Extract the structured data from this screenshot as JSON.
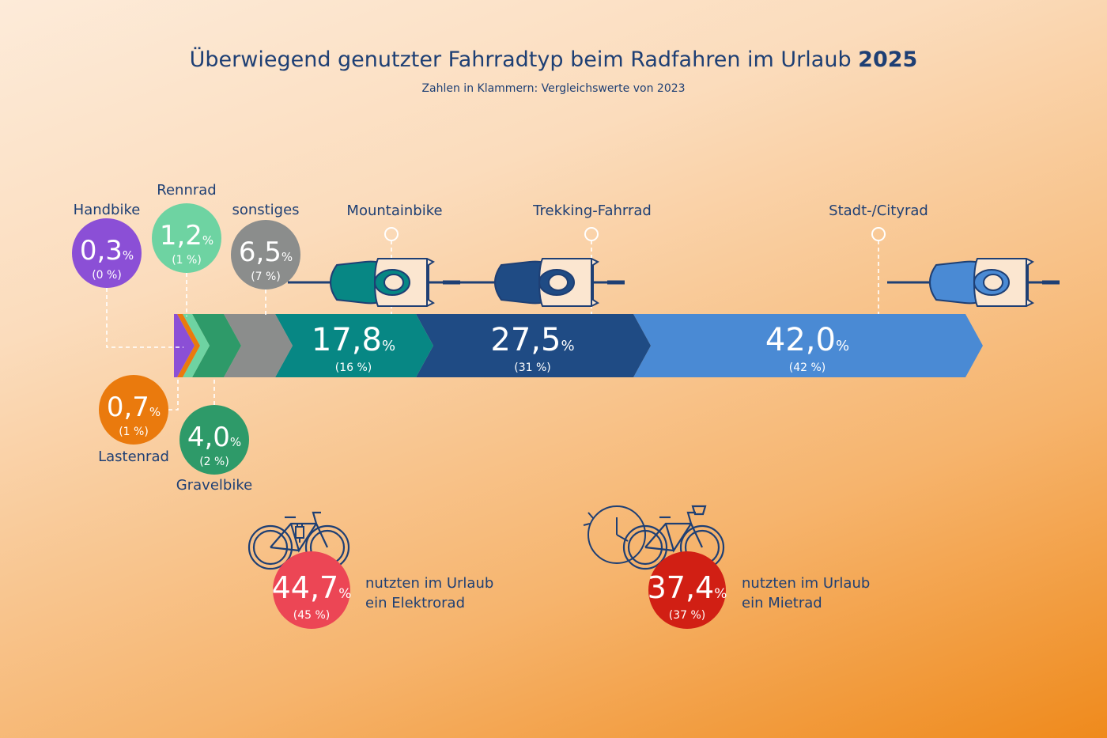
{
  "title": {
    "main": "Überwiegend genutzter Fahrradtyp beim Radfahren im Urlaub",
    "year": "2025"
  },
  "subtitle": "Zahlen in Klammern: Vergleichswerte von 2023",
  "chart_data": {
    "type": "bar",
    "orientation": "stacked-horizontal",
    "title": "Überwiegend genutzter Fahrradtyp beim Radfahren im Urlaub 2025",
    "unit": "%",
    "series": [
      {
        "name": "Handbike",
        "value": 0.3,
        "label": "0,3",
        "prev_label": "(0 %)",
        "color": "#8b4fd6"
      },
      {
        "name": "Lastenrad",
        "value": 0.7,
        "label": "0,7",
        "prev_label": "(1 %)",
        "color": "#ea7a0d"
      },
      {
        "name": "Rennrad",
        "value": 1.2,
        "label": "1,2",
        "prev_label": "(1 %)",
        "color": "#6ed3a2"
      },
      {
        "name": "Gravelbike",
        "value": 4.0,
        "label": "4,0",
        "prev_label": "(2 %)",
        "color": "#2e9a69"
      },
      {
        "name": "sonstiges",
        "value": 6.5,
        "label": "6,5",
        "prev_label": "(7 %)",
        "color": "#8b8d8c"
      },
      {
        "name": "Mountainbike",
        "value": 17.8,
        "label": "17,8",
        "prev_label": "(16 %)",
        "color": "#078784"
      },
      {
        "name": "Trekking-Fahrrad",
        "value": 27.5,
        "label": "27,5",
        "prev_label": "(31 %)",
        "color": "#1f4b84"
      },
      {
        "name": "Stadt-/Cityrad",
        "value": 42.0,
        "label": "42,0",
        "prev_label": "(42 %)",
        "color": "#4a8ad4"
      }
    ],
    "extra_stats": [
      {
        "label": "44,7",
        "prev_label": "(45 %)",
        "text1": "nutzten im Urlaub",
        "text2": "ein Elektrorad",
        "color": "#ec4655",
        "icon": "e-bike-icon"
      },
      {
        "label": "37,4",
        "prev_label": "(37 %)",
        "text1": "nutzten im Urlaub",
        "text2": "ein Mietrad",
        "color": "#d11f14",
        "icon": "rental-bike-clock-icon"
      }
    ]
  },
  "percent_sign": "%"
}
